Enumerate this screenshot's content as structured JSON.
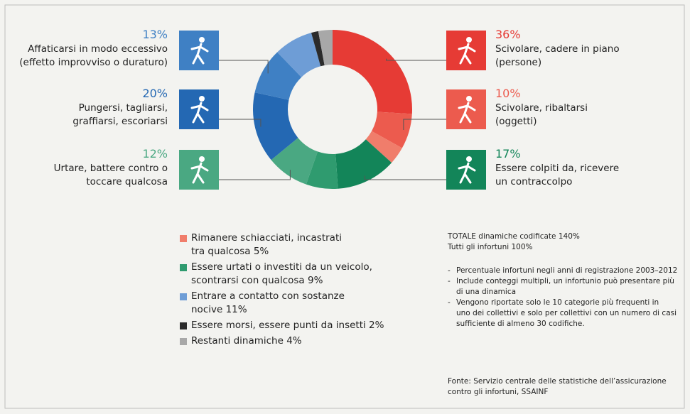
{
  "chart_data": {
    "type": "donut",
    "series": [
      {
        "name": "Scivolare, cadere in piano\n(persone)",
        "value": 36,
        "value_label": "36%",
        "color": "#e63b35"
      },
      {
        "name": "Scivolare, ribaltarsi\n(oggetti)",
        "value": 10,
        "value_label": "10%",
        "color": "#ec5b4e"
      },
      {
        "name": "Rimanere schiacciati, incastrati\ntra qualcosa",
        "value": 5,
        "value_label": "5%",
        "color": "#f07d6b"
      },
      {
        "name": "Essere colpiti da, ricevere\nun contraccolpo",
        "value": 17,
        "value_label": "17%",
        "color": "#138559"
      },
      {
        "name": "Essere urtati o investiti da un veicolo,\nscontrarsi con qualcosa",
        "value": 9,
        "value_label": "9%",
        "color": "#2f9b6f"
      },
      {
        "name": "Urtare, battere contro o\ntoccare qualcosa",
        "value": 12,
        "value_label": "12%",
        "color": "#4aa882"
      },
      {
        "name": "Pungersi, tagliarsi,\ngraffiarsi, escoriarsi",
        "value": 20,
        "value_label": "20%",
        "color": "#2468b3"
      },
      {
        "name": "Affaticarsi in modo eccessivo\n(effetto improvviso o duraturo)",
        "value": 13,
        "value_label": "13%",
        "color": "#3f80c4"
      },
      {
        "name": "Entrare a contatto con sostanze\nnocive",
        "value": 11,
        "value_label": "11%",
        "color": "#6e9dd6"
      },
      {
        "name": "Essere morsi, essere punti da insetti",
        "value": 2,
        "value_label": "2%",
        "color": "#2b2b2b"
      },
      {
        "name": "Restanti dinamiche",
        "value": 4,
        "value_label": "4%",
        "color": "#a8a8a8"
      }
    ]
  },
  "notes": {
    "total": "TOTALE dinamiche codificate 140%",
    "all": "Tutti gli infortuni 100%",
    "bullets": [
      "Percentuale infortuni negli anni di registrazione 2003–2012",
      "Include conteggi multipli, un infortunio può presentare più\ndi una dinamica",
      "Vengono riportate solo le 10 categorie più frequenti in\nuno dei collettivi e solo per collettivi con un numero di casi\nsufficiente di almeno 30 codifiche."
    ],
    "source": "Fonte: Servizio centrale delle statistiche dell’assicurazione\ncontro gli infortuni, SSAINF"
  }
}
